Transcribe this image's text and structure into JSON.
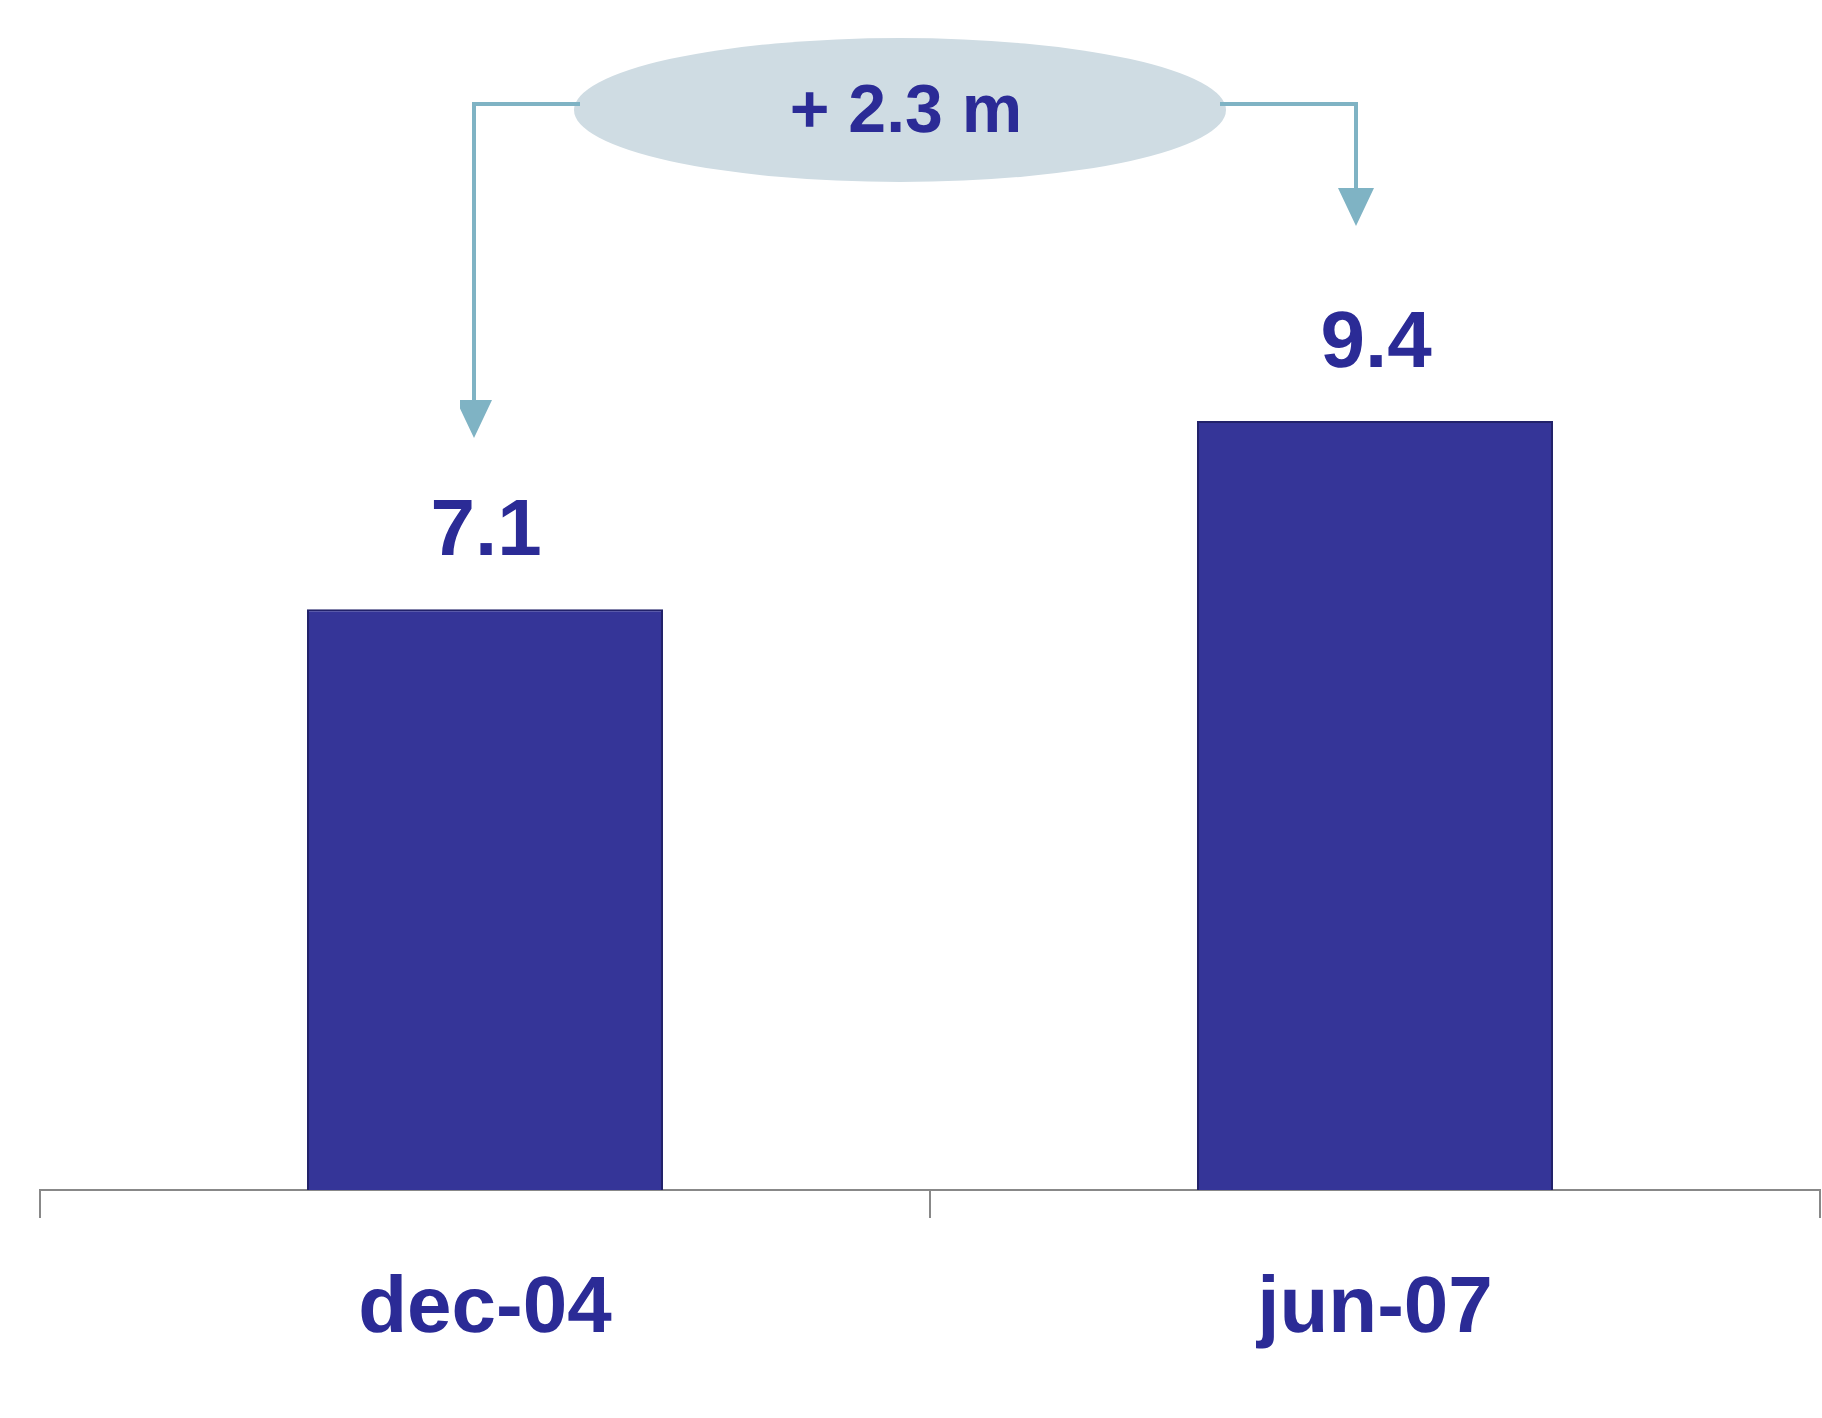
{
  "chart_data": {
    "type": "bar",
    "categories": [
      "dec-04",
      "jun-07"
    ],
    "values": [
      7.1,
      9.4
    ],
    "color": "#353598",
    "data_labels": true,
    "tick_labels": "x",
    "grid": false,
    "legend": false,
    "annotations": [
      "+ 2.3 m"
    ]
  }
}
